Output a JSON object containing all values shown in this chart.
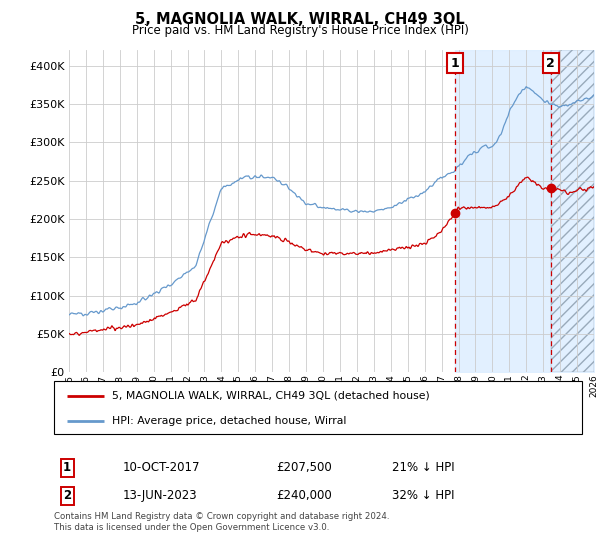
{
  "title": "5, MAGNOLIA WALK, WIRRAL, CH49 3QL",
  "subtitle": "Price paid vs. HM Land Registry's House Price Index (HPI)",
  "ylim": [
    0,
    420000
  ],
  "yticks": [
    0,
    50000,
    100000,
    150000,
    200000,
    250000,
    300000,
    350000,
    400000
  ],
  "x_start_year": 1995,
  "x_end_year": 2026,
  "sale1_date": "10-OCT-2017",
  "sale1_price": 207500,
  "sale1_year": 2017.78,
  "sale1_pct": "21% ↓ HPI",
  "sale2_date": "13-JUN-2023",
  "sale2_price": 240000,
  "sale2_year": 2023.45,
  "sale2_pct": "32% ↓ HPI",
  "legend_property": "5, MAGNOLIA WALK, WIRRAL, CH49 3QL (detached house)",
  "legend_hpi": "HPI: Average price, detached house, Wirral",
  "footer": "Contains HM Land Registry data © Crown copyright and database right 2024.\nThis data is licensed under the Open Government Licence v3.0.",
  "line_color_property": "#cc0000",
  "line_color_hpi": "#6699cc",
  "shade_color": "#ddeeff",
  "hatch_color": "#aabbcc"
}
